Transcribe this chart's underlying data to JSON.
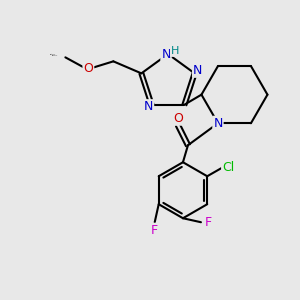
{
  "bg_color": "#e8e8e8",
  "bond_color": "#000000",
  "atom_colors": {
    "N": "#0000cc",
    "O": "#cc0000",
    "Cl": "#00bb00",
    "F": "#cc00cc",
    "H": "#008888",
    "C": "#000000"
  },
  "figsize": [
    3.0,
    3.0
  ],
  "dpi": 100
}
